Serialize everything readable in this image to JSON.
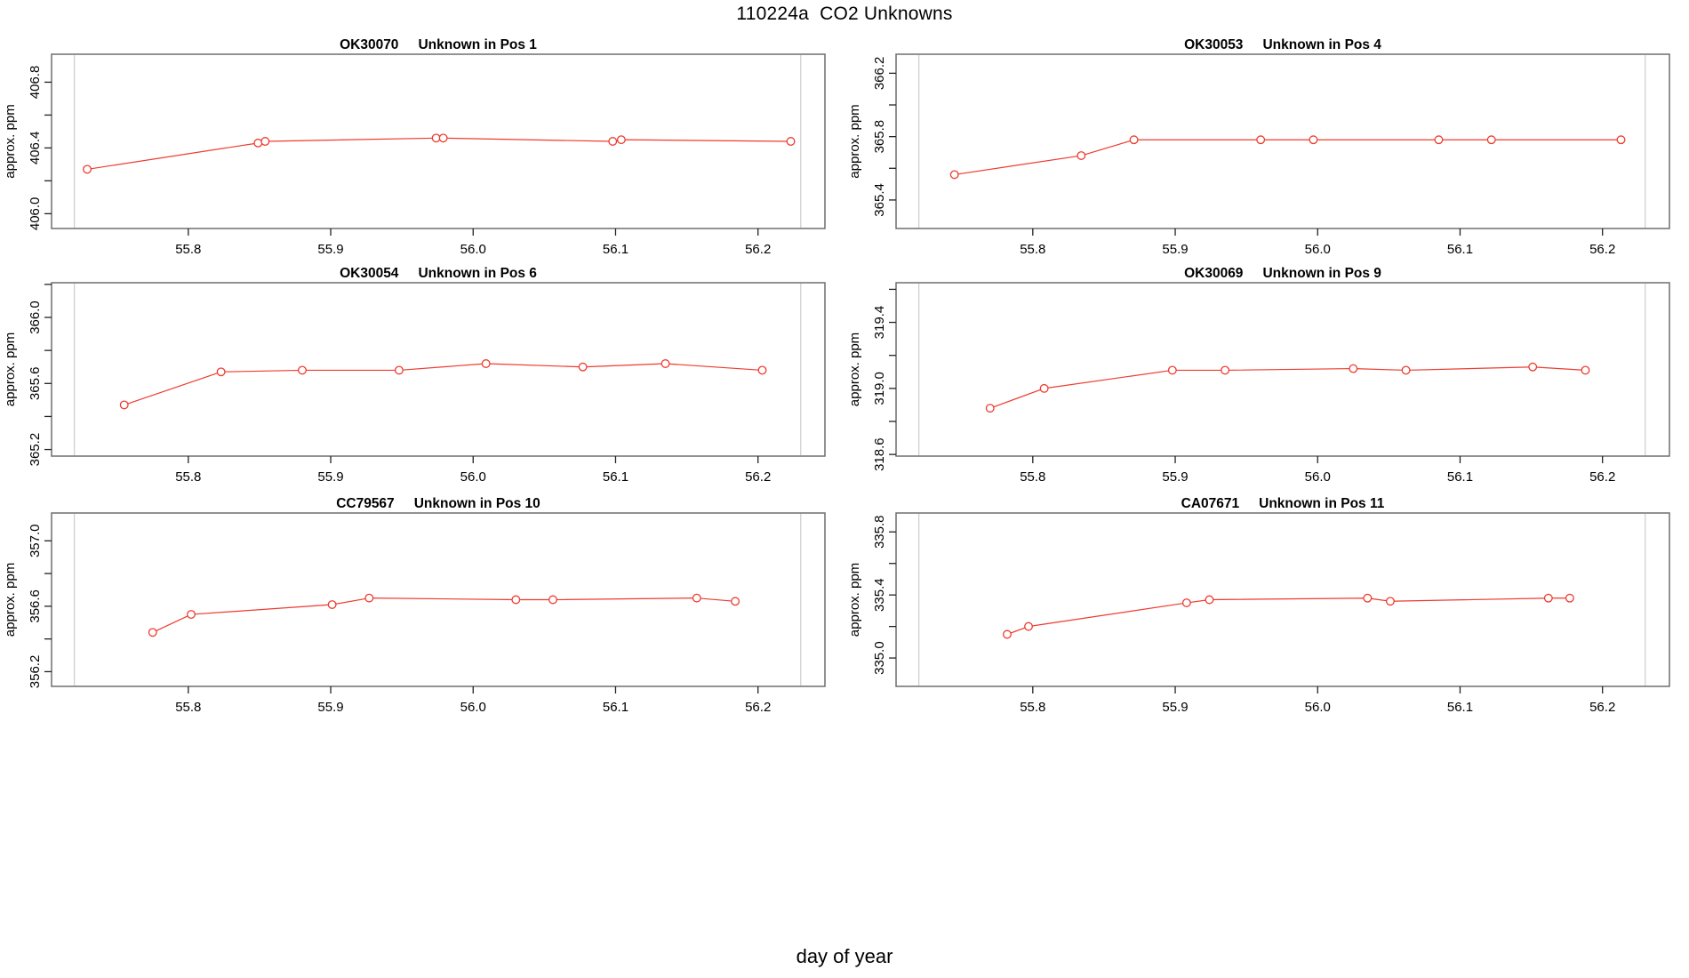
{
  "figure": {
    "title": "110224a  CO2 Unknowns",
    "xlabel": "day of year",
    "background": "#ffffff",
    "line_color": "#ee3b2e",
    "box_color": "#6e6e6e",
    "tick_color": "#222222",
    "refline_color": "#cdcdcd"
  },
  "chart_data": [
    {
      "type": "line",
      "panel_id": "OK30070",
      "panel_desc": "Unknown in Pos 1",
      "title": "OK30070    Unknown in Pos 1",
      "ylabel": "approx. ppm",
      "x": [
        55.729,
        55.849,
        55.854,
        55.974,
        55.979,
        56.098,
        56.104,
        56.223
      ],
      "y": [
        406.27,
        406.43,
        406.44,
        406.46,
        406.46,
        406.44,
        406.45,
        406.44
      ],
      "xlim": [
        55.704,
        56.247
      ],
      "ylim": [
        405.91,
        406.97
      ],
      "xticks": [
        55.8,
        55.9,
        56.0,
        56.1,
        56.2
      ],
      "yticks": [
        406.0,
        406.2,
        406.4,
        406.6,
        406.8
      ],
      "ytick_labels": [
        406.0,
        406.4,
        406.8
      ],
      "vlines": [
        55.72,
        56.23
      ],
      "marker": "open-circle",
      "legend": null,
      "grid": false
    },
    {
      "type": "line",
      "panel_id": "OK30053",
      "panel_desc": "Unknown in Pos 4",
      "title": "OK30053    Unknown in Pos 4",
      "ylabel": "approx. ppm",
      "x": [
        55.745,
        55.834,
        55.871,
        55.96,
        55.997,
        56.085,
        56.122,
        56.213
      ],
      "y": [
        365.56,
        365.68,
        365.78,
        365.78,
        365.78,
        365.78,
        365.78,
        365.78
      ],
      "xlim": [
        55.704,
        56.247
      ],
      "ylim": [
        365.22,
        366.32
      ],
      "xticks": [
        55.8,
        55.9,
        56.0,
        56.1,
        56.2
      ],
      "yticks": [
        365.4,
        365.6,
        365.8,
        366.0,
        366.2
      ],
      "ytick_labels": [
        365.4,
        365.8,
        366.2
      ],
      "vlines": [
        55.72,
        56.23
      ],
      "marker": "open-circle",
      "legend": null,
      "grid": false
    },
    {
      "type": "line",
      "panel_id": "OK30054",
      "panel_desc": "Unknown in Pos 6",
      "title": "OK30054    Unknown in Pos 6",
      "ylabel": "approx. ppm",
      "x": [
        55.755,
        55.823,
        55.88,
        55.948,
        56.009,
        56.077,
        56.135,
        56.203
      ],
      "y": [
        365.47,
        365.67,
        365.68,
        365.68,
        365.72,
        365.7,
        365.72,
        365.68
      ],
      "xlim": [
        55.704,
        56.247
      ],
      "ylim": [
        365.16,
        366.21
      ],
      "xticks": [
        55.8,
        55.9,
        56.0,
        56.1,
        56.2
      ],
      "yticks": [
        365.2,
        365.4,
        365.6,
        365.8,
        366.0,
        366.2
      ],
      "ytick_labels": [
        365.2,
        365.6,
        366.0
      ],
      "vlines": [
        55.72,
        56.23
      ],
      "marker": "open-circle",
      "legend": null,
      "grid": false
    },
    {
      "type": "line",
      "panel_id": "OK30069",
      "panel_desc": "Unknown in Pos 9",
      "title": "OK30069    Unknown in Pos 9",
      "ylabel": "approx. ppm",
      "x": [
        55.77,
        55.808,
        55.898,
        55.935,
        56.025,
        56.062,
        56.151,
        56.188
      ],
      "y": [
        318.88,
        319.0,
        319.11,
        319.11,
        319.12,
        319.11,
        319.13,
        319.11
      ],
      "xlim": [
        55.704,
        56.247
      ],
      "ylim": [
        318.59,
        319.64
      ],
      "xticks": [
        55.8,
        55.9,
        56.0,
        56.1,
        56.2
      ],
      "yticks": [
        318.6,
        318.8,
        319.0,
        319.2,
        319.4,
        319.6
      ],
      "ytick_labels": [
        318.6,
        319.0,
        319.4
      ],
      "vlines": [
        55.72,
        56.23
      ],
      "marker": "open-circle",
      "legend": null,
      "grid": false
    },
    {
      "type": "line",
      "panel_id": "CC79567",
      "panel_desc": "Unknown in Pos 10",
      "title": "CC79567    Unknown in Pos 10",
      "ylabel": "approx. ppm",
      "x": [
        55.775,
        55.802,
        55.901,
        55.927,
        56.03,
        56.056,
        56.157,
        56.184
      ],
      "y": [
        356.44,
        356.55,
        356.61,
        356.65,
        356.64,
        356.64,
        356.65,
        356.63
      ],
      "xlim": [
        55.704,
        56.247
      ],
      "ylim": [
        356.11,
        357.17
      ],
      "xticks": [
        55.8,
        55.9,
        56.0,
        56.1,
        56.2
      ],
      "yticks": [
        356.2,
        356.4,
        356.6,
        356.8,
        357.0
      ],
      "ytick_labels": [
        356.2,
        356.6,
        357.0
      ],
      "vlines": [
        55.72,
        56.23
      ],
      "marker": "open-circle",
      "legend": null,
      "grid": false
    },
    {
      "type": "line",
      "panel_id": "CA07671",
      "panel_desc": "Unknown in Pos 11",
      "title": "CA07671    Unknown in Pos 11",
      "ylabel": "approx. ppm",
      "x": [
        55.782,
        55.797,
        55.908,
        55.924,
        56.035,
        56.051,
        56.162,
        56.177
      ],
      "y": [
        335.15,
        335.2,
        335.35,
        335.37,
        335.38,
        335.36,
        335.38,
        335.38
      ],
      "xlim": [
        55.704,
        56.247
      ],
      "ylim": [
        334.82,
        335.92
      ],
      "xticks": [
        55.8,
        55.9,
        56.0,
        56.1,
        56.2
      ],
      "yticks": [
        335.0,
        335.2,
        335.4,
        335.6,
        335.8
      ],
      "ytick_labels": [
        335.0,
        335.4,
        335.8
      ],
      "vlines": [
        55.72,
        56.23
      ],
      "marker": "open-circle",
      "legend": null,
      "grid": false
    }
  ]
}
